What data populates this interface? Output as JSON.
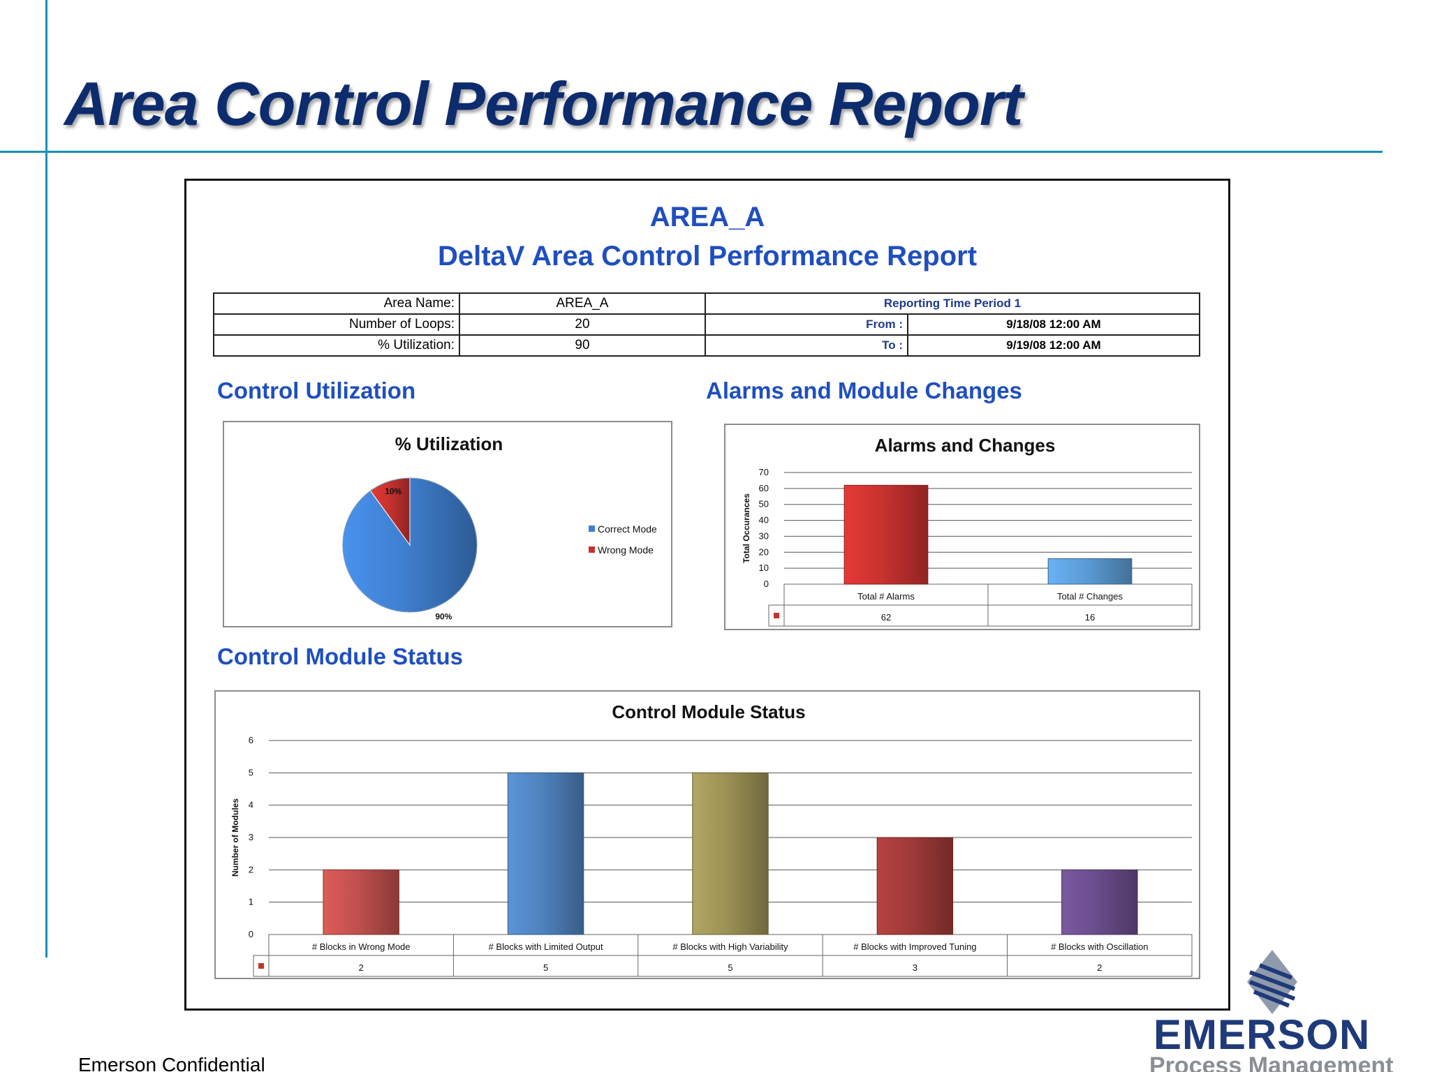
{
  "slide": {
    "title": "Area Control Performance Report",
    "footer": "Emerson Confidential",
    "logo_word": "EMERSON",
    "logo_sub": "Process Management"
  },
  "report": {
    "area": "AREA_A",
    "heading": "DeltaV Area Control Performance Report",
    "info": {
      "area_name_label": "Area Name:",
      "area_name_value": "AREA_A",
      "loops_label": "Number of Loops:",
      "loops_value": "20",
      "util_label": "% Utilization:",
      "util_value": "90",
      "period_label": "Reporting Time Period 1",
      "from_label": "From :",
      "from_value": "9/18/08 12:00 AM",
      "to_label": "To :",
      "to_value": "9/19/08 12:00 AM"
    },
    "sections": {
      "utilization": "Control Utilization",
      "alarms": "Alarms and Module Changes",
      "status": "Control Module Status"
    }
  },
  "chart_data": [
    {
      "type": "pie",
      "title": "% Utilization",
      "slices": [
        {
          "name": "Correct Mode",
          "value": 90,
          "label": "90%",
          "color": "#3f7fcf"
        },
        {
          "name": "Wrong Mode",
          "value": 10,
          "label": "10%",
          "color": "#c8322f"
        }
      ],
      "legend": "right"
    },
    {
      "type": "bar",
      "title": "Alarms and Changes",
      "categories": [
        "Total # Alarms",
        "Total # Changes"
      ],
      "values": [
        62,
        16
      ],
      "value_labels": [
        "62",
        "16"
      ],
      "colors": [
        "#c8322f",
        "#5b9bd5"
      ],
      "ylabel": "Total Occurances",
      "ylim": [
        0,
        70
      ],
      "yticks": [
        "0",
        "10",
        "20",
        "30",
        "40",
        "50",
        "60",
        "70"
      ],
      "grid": true,
      "data_table": true
    },
    {
      "type": "bar",
      "title": "Control Module Status",
      "categories": [
        "# Blocks in Wrong Mode",
        "# Blocks with Limited Output",
        "# Blocks with High Variability",
        "# Blocks with Improved Tuning",
        "# Blocks with Oscillation"
      ],
      "values": [
        2,
        5,
        5,
        3,
        2
      ],
      "value_labels": [
        "2",
        "5",
        "5",
        "3",
        "2"
      ],
      "colors": [
        "#c0504d",
        "#4f81bd",
        "#9b9155",
        "#9e3a38",
        "#6a4d8c"
      ],
      "ylabel": "Number of Modules",
      "ylim": [
        0,
        6
      ],
      "yticks": [
        "0",
        "1",
        "2",
        "3",
        "4",
        "5",
        "6"
      ],
      "grid": true,
      "data_table": true
    }
  ]
}
